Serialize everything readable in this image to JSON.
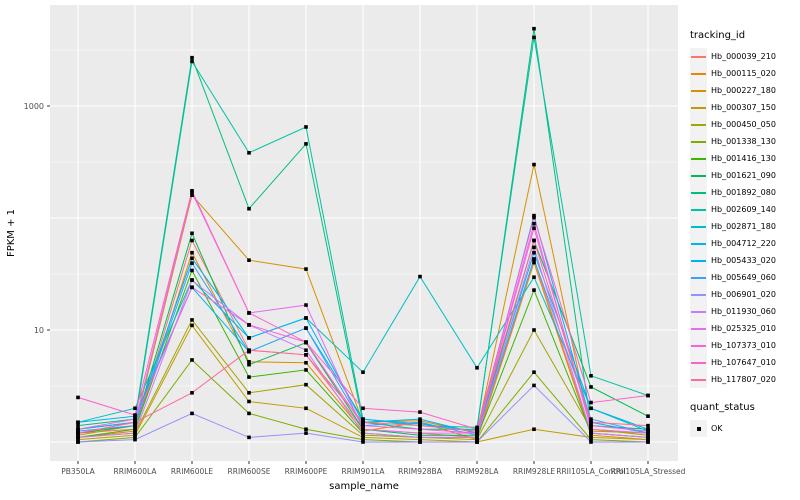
{
  "legend": {
    "tracking_title": "tracking_id",
    "quant_title": "quant_status",
    "quant_ok_label": "OK"
  },
  "panel": {
    "background_color": "#EBEBEB",
    "gridline_color": "#FFFFFF",
    "point_color": "#000000",
    "tick_label_color": "#4D4D4D"
  },
  "chart_data": {
    "type": "line",
    "title": "",
    "xlabel": "sample_name",
    "ylabel": "FPKM + 1",
    "y_scale": "log10",
    "ylim": [
      0.85,
      7000
    ],
    "y_ticks": [
      1000,
      10
    ],
    "y_tick_labels": [
      "1000",
      "10"
    ],
    "y_major_gridlines": [
      1000,
      100,
      10,
      1
    ],
    "y_minor_gridlines": [
      3162,
      316.2,
      31.62,
      3.162
    ],
    "grid": true,
    "legend_position": "right",
    "point_marker": "filled black point (quant_status OK)",
    "categories": [
      "PB350LA",
      "RRIM600LA",
      "RRIM600LE",
      "RRIM600SE",
      "RRIM600PE",
      "RRIM901LA",
      "RRIM928BA",
      "RRIM928LA",
      "RRIM928LE",
      "RRII105LA_Control",
      "RRII105LA_Stressed"
    ],
    "series": [
      {
        "name": "Hb_000039_210",
        "color": "#F8766D",
        "values": [
          1.2,
          1.3,
          63,
          6.6,
          6.0,
          1.3,
          1.2,
          1.1,
          43,
          1.2,
          1.1
        ]
      },
      {
        "name": "Hb_000115_020",
        "color": "#E58700",
        "values": [
          1.1,
          1.25,
          49,
          5.2,
          5.1,
          1.25,
          1.5,
          1.05,
          40,
          1.15,
          1.05
        ]
      },
      {
        "name": "Hb_000227_180",
        "color": "#D89000",
        "values": [
          1.15,
          1.4,
          160,
          42,
          35,
          1.5,
          1.55,
          1.2,
          300,
          1.25,
          1.2
        ]
      },
      {
        "name": "Hb_000307_150",
        "color": "#C09B00",
        "values": [
          1.05,
          1.15,
          11,
          2.3,
          2.0,
          1.1,
          1.05,
          1.0,
          1.3,
          1.1,
          1.05
        ]
      },
      {
        "name": "Hb_000450_050",
        "color": "#A3A500",
        "values": [
          1.1,
          1.2,
          12.3,
          2.75,
          3.25,
          1.15,
          1.1,
          1.05,
          10,
          1.3,
          1.15
        ]
      },
      {
        "name": "Hb_001338_130",
        "color": "#7CAE00",
        "values": [
          1.0,
          1.1,
          5.4,
          1.8,
          1.3,
          1.05,
          1.0,
          1.0,
          4.2,
          1.05,
          1.0
        ]
      },
      {
        "name": "Hb_001416_130",
        "color": "#39B600",
        "values": [
          1.1,
          1.3,
          34,
          3.8,
          4.4,
          1.2,
          1.1,
          1.1,
          22.7,
          1.2,
          1.1
        ]
      },
      {
        "name": "Hb_001621_090",
        "color": "#00BB4E",
        "values": [
          1.2,
          1.4,
          73,
          4.9,
          7.7,
          1.3,
          1.15,
          1.15,
          63,
          3.1,
          1.7
        ]
      },
      {
        "name": "Hb_001892_080",
        "color": "#00BF7D",
        "values": [
          1.4,
          1.6,
          2700,
          121,
          459,
          1.5,
          1.3,
          1.3,
          4900,
          1.4,
          1.3
        ]
      },
      {
        "name": "Hb_002609_140",
        "color": "#00C1A3",
        "values": [
          1.3,
          1.5,
          2500,
          382,
          650,
          1.6,
          1.4,
          1.35,
          4100,
          3.9,
          2.6
        ]
      },
      {
        "name": "Hb_002871_180",
        "color": "#00BFC4",
        "values": [
          1.5,
          2.0,
          28,
          8.5,
          12.8,
          4.2,
          30,
          4.6,
          29.6,
          2.0,
          1.25
        ]
      },
      {
        "name": "Hb_004712_220",
        "color": "#00B5EE",
        "values": [
          1.5,
          1.7,
          24,
          6.4,
          10.4,
          1.6,
          1.45,
          1.25,
          105,
          1.5,
          1.2
        ]
      },
      {
        "name": "Hb_005433_020",
        "color": "#00B0F6",
        "values": [
          1.3,
          1.5,
          43.7,
          8.5,
          12.8,
          1.5,
          1.6,
          1.2,
          49,
          2.0,
          1.3
        ]
      },
      {
        "name": "Hb_005649_060",
        "color": "#35A2FF",
        "values": [
          1.25,
          1.4,
          39.5,
          6.4,
          10.4,
          1.4,
          1.5,
          1.15,
          43,
          1.6,
          1.2
        ]
      },
      {
        "name": "Hb_006901_020",
        "color": "#9590FF",
        "values": [
          1.0,
          1.05,
          1.8,
          1.1,
          1.2,
          1.0,
          1.0,
          1.0,
          3.2,
          1.0,
          1.0
        ]
      },
      {
        "name": "Hb_011930_060",
        "color": "#C77CFF",
        "values": [
          1.1,
          1.2,
          27.8,
          11.1,
          6.6,
          1.2,
          1.1,
          1.1,
          54.7,
          1.2,
          1.1
        ]
      },
      {
        "name": "Hb_025325_010",
        "color": "#E76BF3",
        "values": [
          1.2,
          1.5,
          169,
          14.2,
          16.7,
          1.3,
          1.2,
          1.2,
          89,
          1.3,
          1.2
        ]
      },
      {
        "name": "Hb_107373_010",
        "color": "#FA62DB",
        "values": [
          1.3,
          1.6,
          24.1,
          11.1,
          7.8,
          1.4,
          1.3,
          1.2,
          81,
          1.4,
          1.25
        ]
      },
      {
        "name": "Hb_107647_010",
        "color": "#FF61C8",
        "values": [
          2.5,
          1.74,
          175,
          14.2,
          7.8,
          2.0,
          1.85,
          1.3,
          101,
          2.25,
          2.6
        ]
      },
      {
        "name": "Hb_117807_020",
        "color": "#FF6A98",
        "values": [
          1.2,
          1.5,
          2.75,
          6.6,
          6.0,
          1.5,
          1.4,
          1.25,
          63,
          1.5,
          1.4
        ]
      }
    ]
  }
}
